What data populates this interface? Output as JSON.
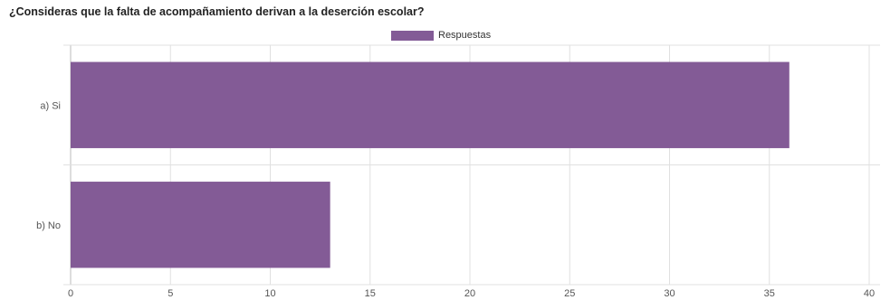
{
  "chart_data": {
    "type": "bar",
    "orientation": "horizontal",
    "title": "¿Consideras que la falta de acompañamiento derivan a la deserción escolar?",
    "categories": [
      "a) Si",
      "b) No"
    ],
    "series": [
      {
        "name": "Respuestas",
        "values": [
          36,
          13
        ],
        "color": "#835b96"
      }
    ],
    "xlim": [
      0,
      40
    ],
    "xticks": [
      0,
      5,
      10,
      15,
      20,
      25,
      30,
      35,
      40
    ],
    "grid": true,
    "legend_position": "top-center"
  }
}
